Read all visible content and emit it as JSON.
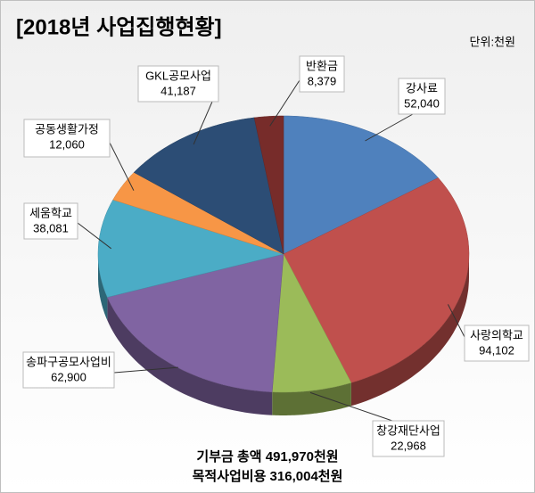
{
  "chart_data": {
    "type": "pie3d",
    "title": "[2018년 사업집행현황]",
    "unit": "단위:천원",
    "notes": [
      "기부금 총액 491,970천원",
      "목적사업비용 316,004천원"
    ],
    "categories": [
      "강사료",
      "사랑의학교",
      "창강재단사업",
      "송파구공모사업비",
      "세움학교",
      "공동생활가정",
      "GKL공모사업",
      "반환금"
    ],
    "values": [
      52040,
      94102,
      22968,
      62900,
      38081,
      12060,
      41187,
      8379
    ],
    "value_labels": [
      "52,040",
      "94,102",
      "22,968",
      "62,900",
      "38,081",
      "12,060",
      "41,187",
      "8,379"
    ],
    "colors": [
      "#4f81bd",
      "#c0504d",
      "#9bbb59",
      "#8064a2",
      "#4bacc6",
      "#f79646",
      "#2c4d75",
      "#772c2a"
    ]
  }
}
